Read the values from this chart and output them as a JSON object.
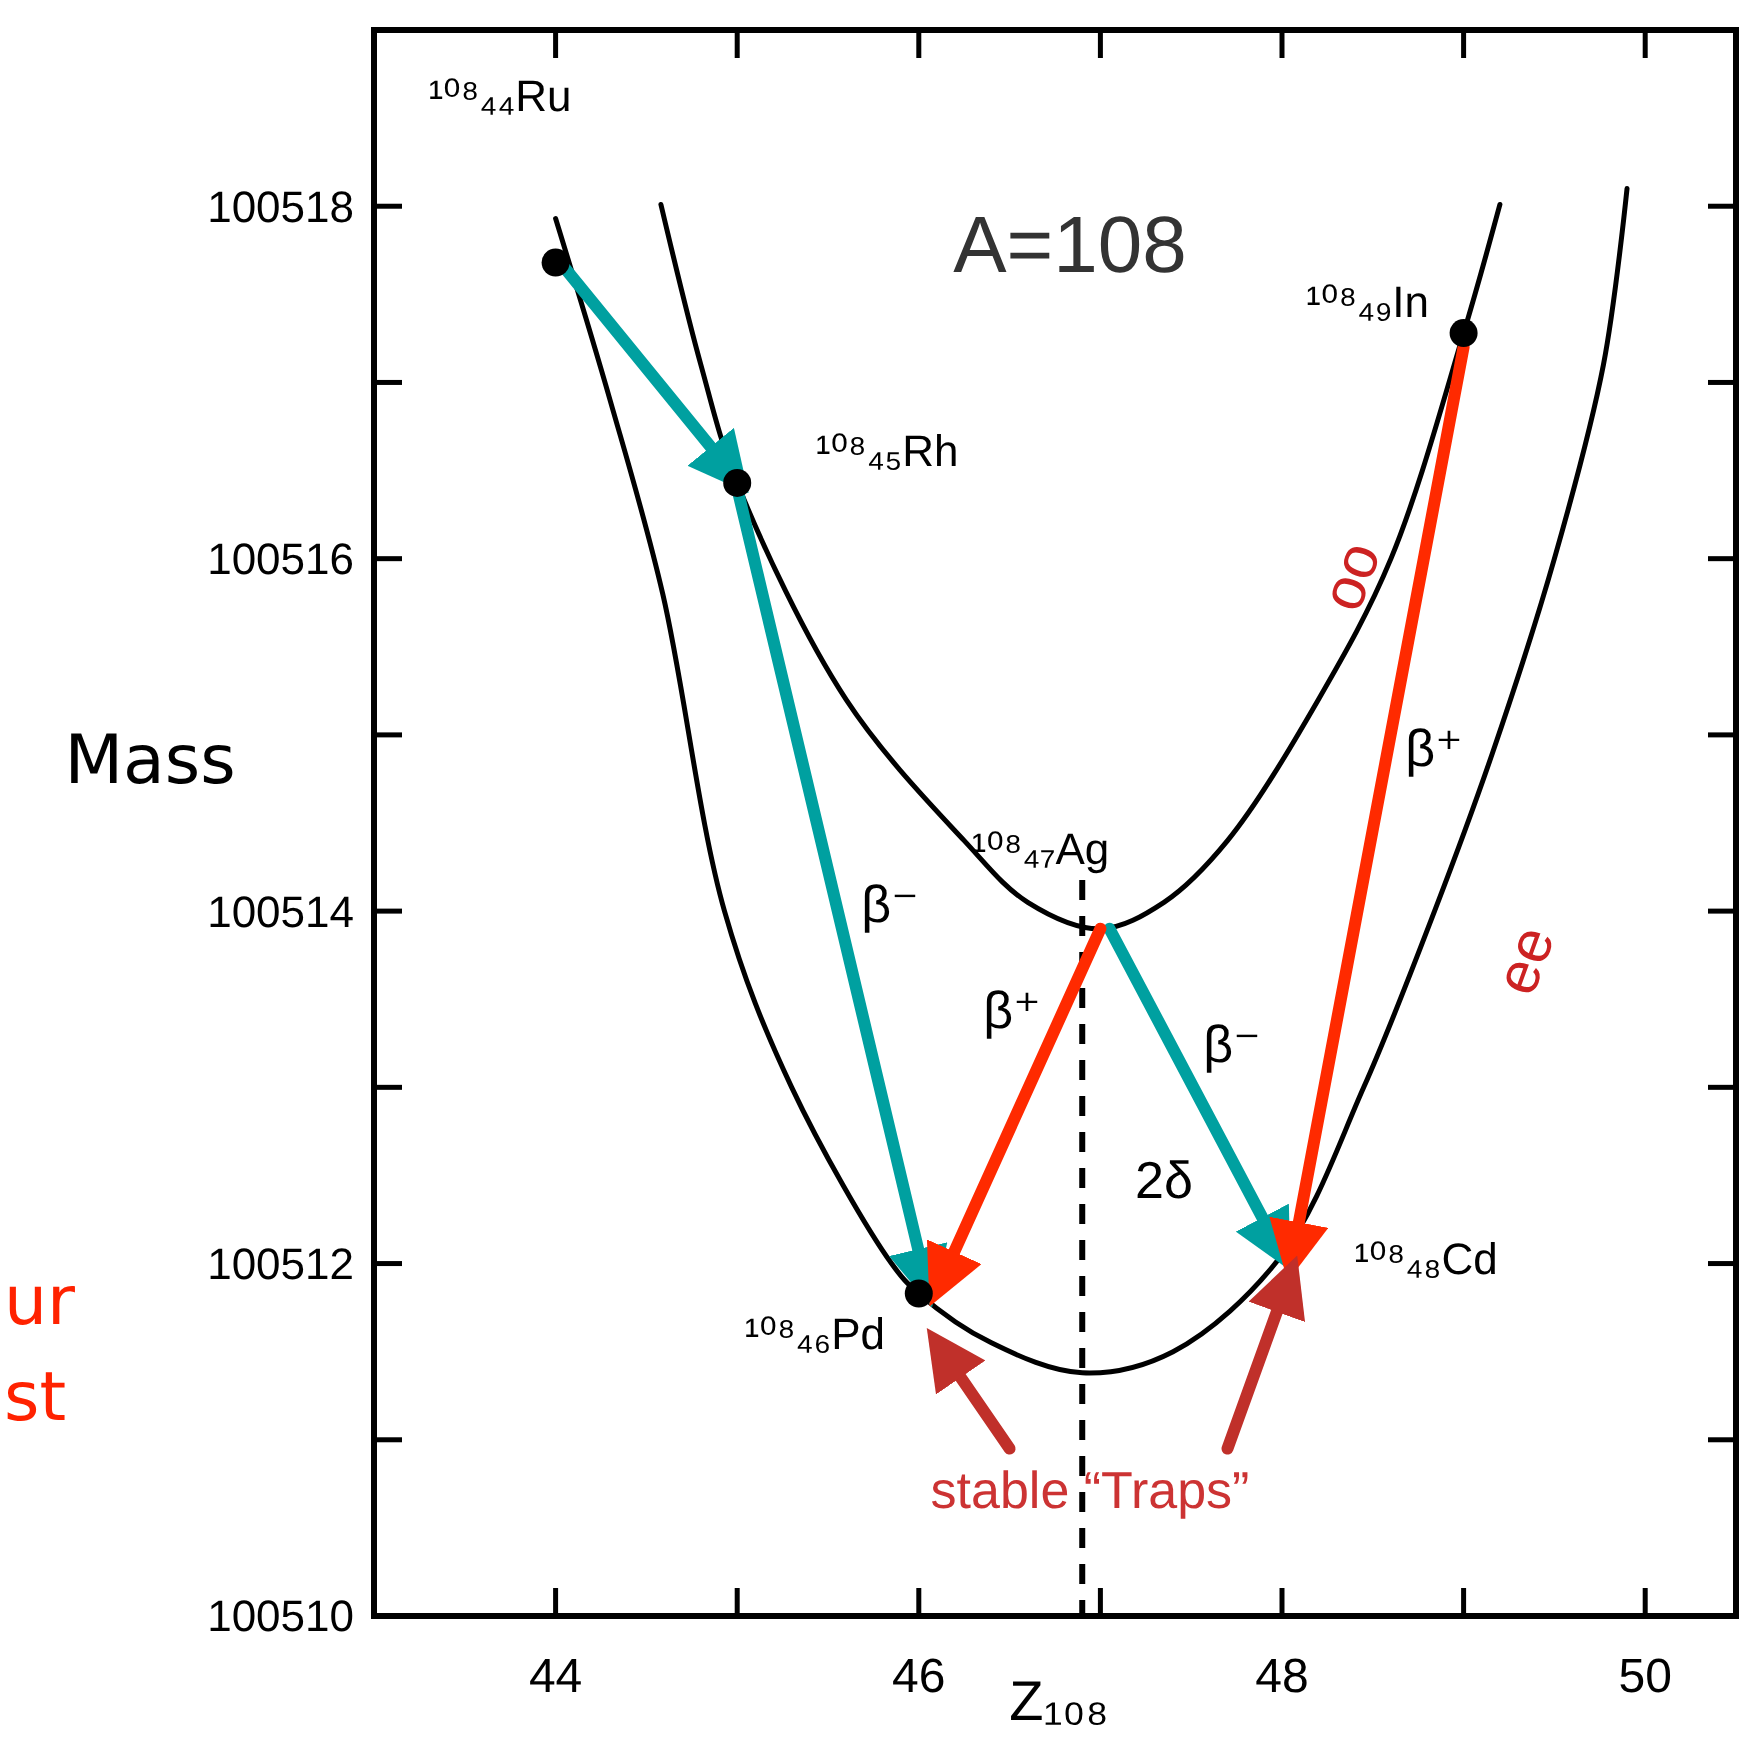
{
  "chart_data": {
    "type": "line",
    "xlabel": "Z₁₀₈",
    "ylabel": "Mass",
    "xlim": [
      43,
      50.5
    ],
    "ylim": [
      100510,
      100519
    ],
    "xticks": [
      44,
      {
        "value": 45,
        "label": null
      },
      46,
      {
        "value": 47,
        "label": null
      },
      48,
      {
        "value": 49,
        "label": null
      },
      50
    ],
    "yticks": [
      100510,
      {
        "value": 100511,
        "label": null
      },
      100512,
      {
        "value": 100513,
        "label": null
      },
      100514,
      {
        "value": 100515,
        "label": null
      },
      100516,
      {
        "value": 100517,
        "label": null
      },
      100518
    ],
    "grid": false,
    "line_style": "solid",
    "series": [
      {
        "color": "#000000",
        "x": [
          44.0,
          44.3,
          44.59,
          44.93,
          45.3,
          45.85,
          46.0,
          46.4,
          46.9,
          47.4,
          48.0,
          48.45,
          48.84,
          49.16,
          49.5,
          49.77,
          49.9
        ],
        "values": [
          100517.93,
          100516.9,
          100515.8,
          100514.0,
          100513.0,
          100512.0,
          100511.83,
          100511.55,
          100511.38,
          100511.5,
          100512.05,
          100513.0,
          100514.0,
          100514.9,
          100516.0,
          100517.1,
          100518.1
        ]
      },
      {
        "color": "#000000",
        "x": [
          44.58,
          44.8,
          45.0,
          45.6,
          46.25,
          46.6,
          47.0,
          47.35,
          47.7,
          48.2,
          48.6,
          49.0,
          49.2
        ],
        "values": [
          100518.01,
          100517.1,
          100516.43,
          100515.2,
          100514.4,
          100514.05,
          100513.9,
          100514.05,
          100514.4,
          100515.2,
          100516.0,
          100517.28,
          100518.01
        ]
      },
      {
        "type": "scatter",
        "marker": "circle",
        "color": "#000000",
        "x": [
          44,
          45,
          46,
          49
        ],
        "values": [
          100517.68,
          100516.43,
          100511.83,
          100517.28
        ]
      },
      {
        "color": "#00a0a0",
        "x": [
          44.05,
          45.0
        ],
        "values": [
          100517.65,
          100516.45
        ]
      },
      {
        "color": "#00a0a0",
        "x": [
          45.0,
          46.05
        ],
        "values": [
          100516.4,
          100511.85
        ]
      },
      {
        "color": "#00a0a0",
        "x": [
          47.05,
          48.0
        ],
        "values": [
          100513.9,
          100512.05
        ]
      },
      {
        "color": "#ff2a00",
        "x": [
          49.0,
          48.05
        ],
        "values": [
          100517.2,
          100512.0
        ]
      },
      {
        "color": "#ff2a00",
        "x": [
          47.0,
          46.1
        ],
        "values": [
          100513.9,
          100511.85
        ]
      },
      {
        "color": "#c0302a",
        "x": [
          46.5,
          46.1
        ],
        "values": [
          100510.95,
          100511.55
        ]
      },
      {
        "color": "#c0302a",
        "x": [
          47.7,
          48.05
        ],
        "values": [
          100510.95,
          100511.95
        ]
      }
    ],
    "ref_lines": [
      {
        "axis": "x",
        "value": 46.9,
        "line_style": "dashed",
        "color": "#000000"
      }
    ],
    "annotations": [
      "A=108",
      "¹⁰⁸₄₄Ru",
      {
        "text": "¹⁰⁸₄₅Rh",
        "x": 45,
        "y": 100516.43
      },
      {
        "text": "¹⁰⁸₄₇Ag",
        "x": 47,
        "y": 100513.9
      },
      {
        "text": "¹⁰⁸₄₉In",
        "x": 49,
        "y": 100517.28
      },
      {
        "text": "¹⁰⁸₄₆Pd",
        "x": 46,
        "y": 100511.83
      },
      {
        "text": "¹⁰⁸₄₈Cd",
        "x": 48,
        "y": 100512.05
      },
      "β⁻",
      "β⁺",
      "β⁻",
      "β⁺",
      "2δ",
      "oo",
      "ee",
      "stable “Traps”",
      "ur",
      "st"
    ]
  }
}
